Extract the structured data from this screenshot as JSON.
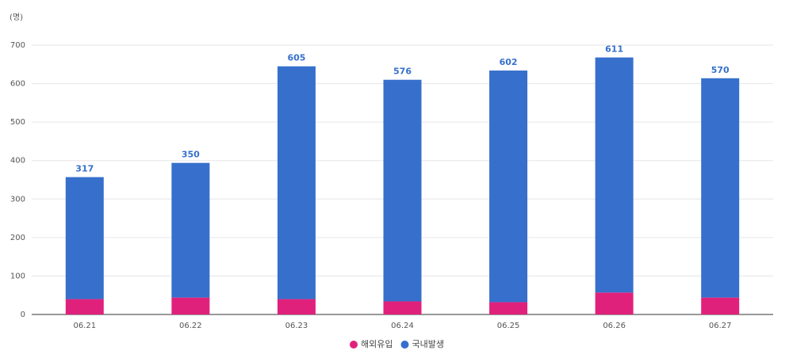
{
  "chart_data": {
    "type": "bar",
    "stacked": true,
    "y_label": "(명)",
    "categories": [
      "06.21",
      "06.22",
      "06.23",
      "06.24",
      "06.25",
      "06.26",
      "06.27"
    ],
    "series": [
      {
        "name": "해외유입",
        "color": "#e0217c",
        "values": [
          40,
          44,
          40,
          34,
          32,
          57,
          44
        ]
      },
      {
        "name": "국내발생",
        "color": "#3670cc",
        "values": [
          317,
          350,
          605,
          576,
          602,
          611,
          570
        ]
      }
    ],
    "ylim": [
      0,
      700
    ],
    "yticks": [
      0,
      100,
      200,
      300,
      400,
      500,
      600,
      700
    ],
    "grid": true,
    "legend": "bottom"
  }
}
